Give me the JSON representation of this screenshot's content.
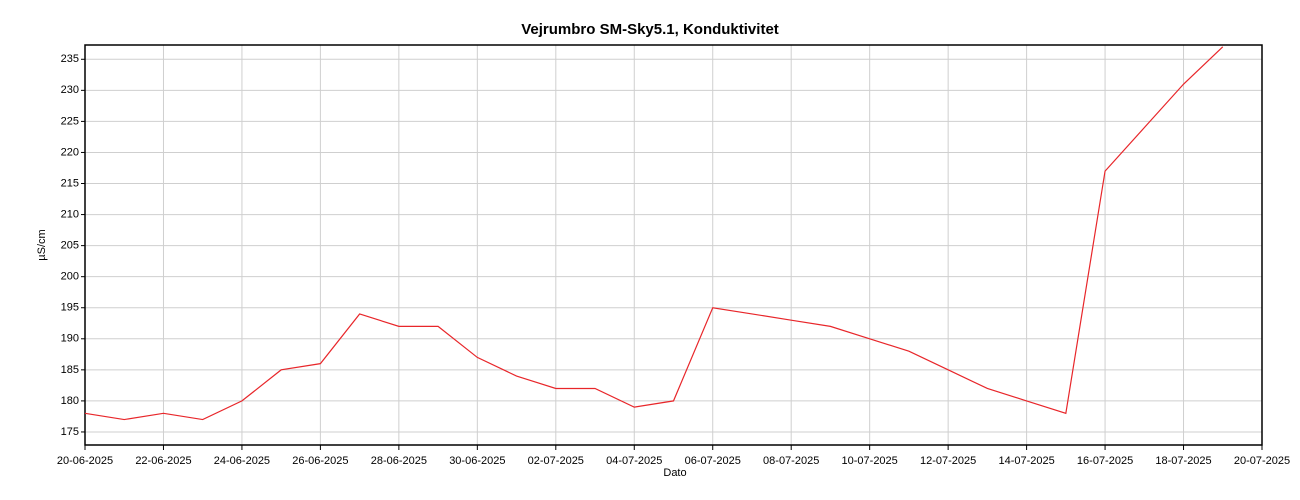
{
  "chart_data": {
    "type": "line",
    "title": "Vejrumbro SM-Sky5.1, Konduktivitet",
    "x_label": "Dato",
    "y_label": "µS/cm",
    "x": [
      "20-06-2025",
      "21-06-2025",
      "22-06-2025",
      "23-06-2025",
      "24-06-2025",
      "25-06-2025",
      "26-06-2025",
      "27-06-2025",
      "28-06-2025",
      "29-06-2025",
      "30-06-2025",
      "01-07-2025",
      "02-07-2025",
      "03-07-2025",
      "04-07-2025",
      "05-07-2025",
      "06-07-2025",
      "07-07-2025",
      "08-07-2025",
      "09-07-2025",
      "10-07-2025",
      "11-07-2025",
      "12-07-2025",
      "13-07-2025",
      "14-07-2025",
      "15-07-2025",
      "16-07-2025",
      "17-07-2025",
      "18-07-2025",
      "19-07-2025"
    ],
    "series": [
      {
        "name": "Konduktivitet",
        "color": "#e8262a",
        "values": [
          178,
          177,
          178,
          177,
          180,
          185,
          186,
          194,
          192,
          192,
          187,
          184,
          182,
          182,
          179,
          180,
          195,
          194,
          193,
          192,
          190,
          188,
          185,
          182,
          180,
          178,
          217,
          224,
          231,
          237
        ]
      }
    ],
    "xlim": [
      "20-06-2025",
      "20-07-2025"
    ],
    "xticks": [
      "20-06-2025",
      "22-06-2025",
      "24-06-2025",
      "26-06-2025",
      "28-06-2025",
      "30-06-2025",
      "02-07-2025",
      "04-07-2025",
      "06-07-2025",
      "08-07-2025",
      "10-07-2025",
      "12-07-2025",
      "14-07-2025",
      "16-07-2025",
      "18-07-2025",
      "20-07-2025"
    ],
    "ylim": [
      172.9,
      237.3
    ],
    "yticks": [
      175,
      180,
      185,
      190,
      195,
      200,
      205,
      210,
      215,
      220,
      225,
      230,
      235
    ],
    "grid": true
  }
}
